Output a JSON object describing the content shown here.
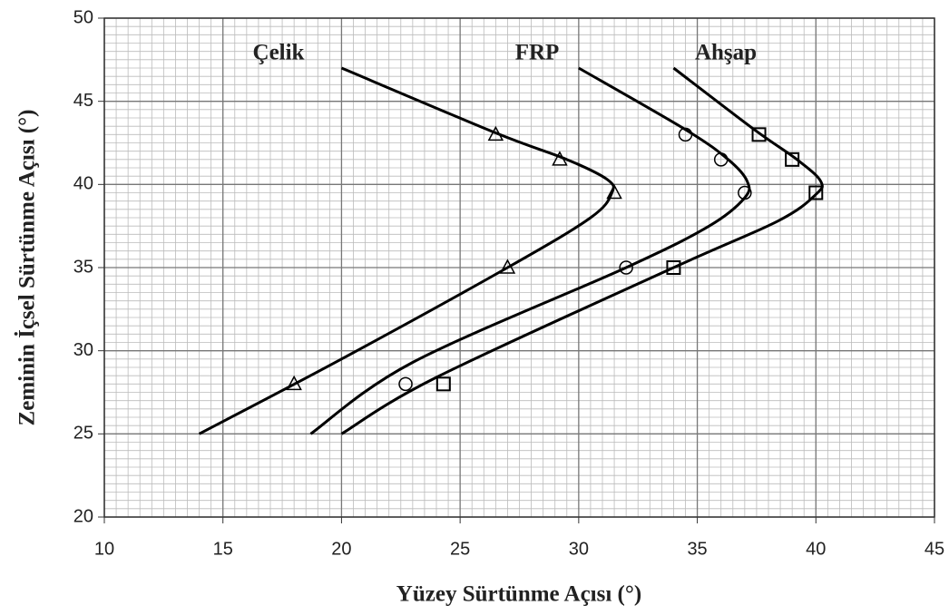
{
  "chart_data": {
    "type": "scatter-curve",
    "xlabel": "Yüzey Sürtünme Açısı (°)",
    "ylabel": "Zeminin İçsel Sürtünme Açısı (°)",
    "xlim": [
      10,
      45
    ],
    "xticks": [
      10,
      15,
      20,
      25,
      30,
      35,
      40,
      45
    ],
    "ylim": [
      20,
      50
    ],
    "yticks": [
      20,
      25,
      30,
      35,
      40,
      45,
      50
    ],
    "grid": true,
    "minor_grid_step": 0.5,
    "series": [
      {
        "name": "Çelik",
        "marker": "triangle",
        "color": "#000000",
        "x": [
          26.5,
          29.2,
          31.5,
          27,
          18
        ],
        "y": [
          43,
          41.5,
          39.5,
          35,
          28
        ],
        "curve_x": [
          20,
          26.5,
          29.5,
          31.2,
          31.4,
          30.5,
          27,
          20,
          14
        ],
        "curve_y": [
          47,
          43.1,
          41.5,
          40.3,
          39.5,
          38,
          35,
          29.5,
          25
        ]
      },
      {
        "name": "FRP",
        "marker": "circle",
        "color": "#000000",
        "x": [
          34.5,
          36,
          37,
          32,
          22.7
        ],
        "y": [
          43,
          41.5,
          39.5,
          35,
          28
        ],
        "curve_x": [
          30,
          34.5,
          36.3,
          37.1,
          37.0,
          35.5,
          32,
          23,
          18.7
        ],
        "curve_y": [
          47,
          43.3,
          41.5,
          40.2,
          39.2,
          37.5,
          35,
          29.3,
          25
        ]
      },
      {
        "name": "Ahşap",
        "marker": "square",
        "color": "#000000",
        "x": [
          37.6,
          39,
          40,
          34,
          24.3
        ],
        "y": [
          43,
          41.5,
          39.5,
          35,
          28
        ],
        "curve_x": [
          34,
          37.4,
          39.2,
          40.2,
          40.0,
          38.4,
          34,
          24,
          20
        ],
        "curve_y": [
          47,
          43.3,
          41.5,
          40.2,
          39.4,
          37.8,
          35,
          28.4,
          25
        ]
      }
    ]
  }
}
